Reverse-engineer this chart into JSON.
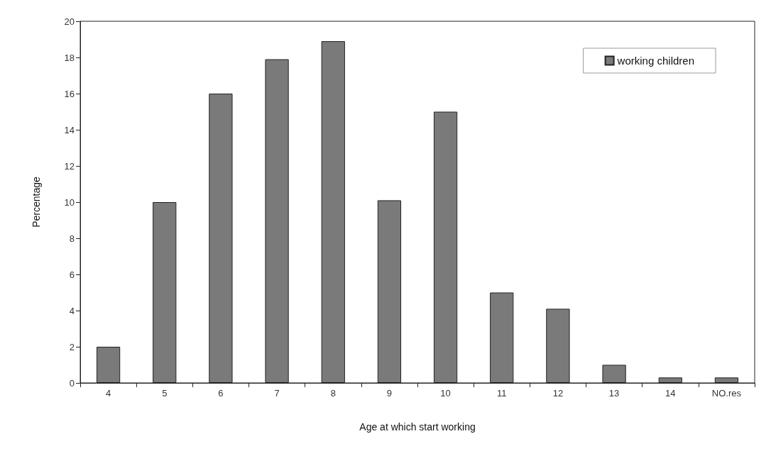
{
  "chart_data": {
    "type": "bar",
    "xlabel": "Age at which start working",
    "ylabel": "Percentage",
    "categories": [
      "4",
      "5",
      "6",
      "7",
      "8",
      "9",
      "10",
      "11",
      "12",
      "13",
      "14",
      "NO.res"
    ],
    "series": [
      {
        "name": "working children",
        "color": "#7a7a7a",
        "values": [
          2,
          10,
          16,
          17.9,
          18.9,
          10.1,
          15,
          5,
          4.1,
          1,
          0.3,
          0.3
        ]
      }
    ],
    "ylim": [
      0,
      20
    ],
    "yticks": [
      0,
      2,
      4,
      6,
      8,
      10,
      12,
      14,
      16,
      18,
      20
    ],
    "grid": false,
    "legend": "top right"
  }
}
